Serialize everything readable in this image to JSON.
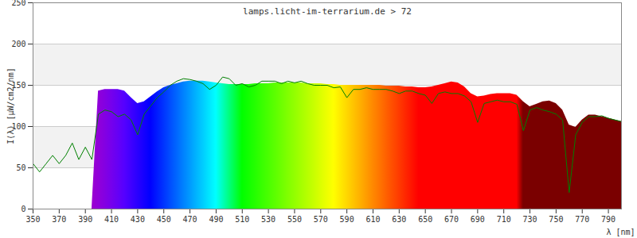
{
  "chart_data": {
    "type": "line",
    "title": "lamps.licht-im-terrarium.de > 72",
    "x_label": "λ [nm]",
    "y_label": "I(λ) [µW/cm2/nm]",
    "xlim": [
      350,
      800
    ],
    "xticks": [
      350,
      370,
      390,
      410,
      430,
      450,
      470,
      490,
      510,
      530,
      550,
      570,
      590,
      610,
      630,
      650,
      670,
      690,
      710,
      730,
      750,
      770,
      790
    ],
    "ylim": [
      0,
      250
    ],
    "yticks": [
      0,
      50,
      100,
      150,
      200,
      250
    ],
    "grid": true,
    "x": [
      350,
      355,
      360,
      365,
      370,
      375,
      380,
      385,
      390,
      395,
      400,
      405,
      410,
      415,
      420,
      425,
      430,
      435,
      440,
      445,
      450,
      455,
      460,
      465,
      470,
      475,
      480,
      485,
      490,
      495,
      500,
      505,
      510,
      515,
      520,
      525,
      530,
      535,
      540,
      545,
      550,
      555,
      560,
      565,
      570,
      575,
      580,
      585,
      590,
      595,
      600,
      605,
      610,
      615,
      620,
      625,
      630,
      635,
      640,
      645,
      650,
      655,
      660,
      665,
      670,
      675,
      680,
      685,
      690,
      695,
      700,
      705,
      710,
      715,
      720,
      725,
      730,
      735,
      740,
      745,
      750,
      755,
      760,
      765,
      770,
      775,
      780,
      785,
      790,
      795,
      800
    ],
    "series": [
      {
        "type": "area",
        "color": "spectrum",
        "values": [
          null,
          null,
          null,
          null,
          null,
          null,
          null,
          null,
          null,
          null,
          143,
          145,
          145,
          145,
          143,
          135,
          128,
          130,
          136,
          142,
          147,
          150,
          152,
          154,
          155,
          155,
          155,
          154,
          153,
          152,
          151,
          151,
          151,
          151,
          152,
          152,
          152,
          153,
          153,
          153,
          153,
          153,
          152,
          152,
          152,
          151,
          151,
          150,
          150,
          150,
          150,
          150,
          150,
          150,
          149,
          149,
          149,
          148,
          148,
          147,
          147,
          148,
          150,
          152,
          154,
          153,
          148,
          140,
          136,
          137,
          139,
          140,
          140,
          140,
          138,
          130,
          124,
          127,
          130,
          131,
          128,
          120,
          102,
          99,
          108,
          114,
          114,
          112,
          110,
          108,
          106
        ]
      },
      {
        "type": "line",
        "color": "#008000",
        "values": [
          55,
          45,
          55,
          65,
          55,
          65,
          80,
          60,
          75,
          60,
          115,
          120,
          118,
          112,
          115,
          108,
          90,
          115,
          125,
          135,
          142,
          150,
          155,
          158,
          157,
          155,
          152,
          145,
          150,
          160,
          158,
          150,
          152,
          148,
          150,
          155,
          155,
          155,
          152,
          155,
          153,
          155,
          152,
          150,
          150,
          150,
          147,
          148,
          135,
          145,
          145,
          147,
          145,
          145,
          145,
          143,
          140,
          143,
          143,
          140,
          138,
          128,
          140,
          142,
          140,
          140,
          137,
          130,
          105,
          128,
          130,
          132,
          130,
          130,
          127,
          95,
          120,
          123,
          120,
          118,
          115,
          108,
          20,
          90,
          105,
          112,
          112,
          113,
          110,
          108,
          106
        ]
      }
    ]
  }
}
